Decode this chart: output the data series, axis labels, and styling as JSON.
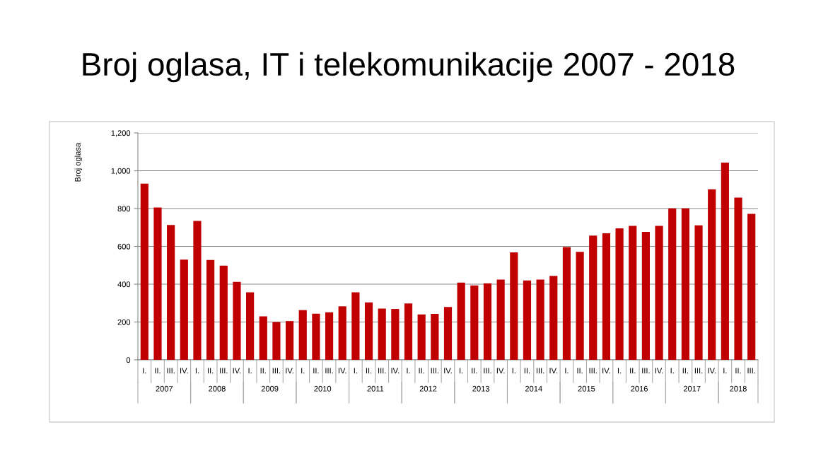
{
  "chart_data": {
    "type": "bar",
    "title": "Broj oglasa, IT i telekomunikacije 2007 - 2018",
    "ylabel": "Broj oglasa",
    "categories": [
      "I.",
      "II.",
      "III.",
      "IV.",
      "I.",
      "II.",
      "III.",
      "IV.",
      "I.",
      "II.",
      "III.",
      "IV.",
      "I.",
      "II.",
      "III.",
      "IV.",
      "I.",
      "II.",
      "III.",
      "IV.",
      "I.",
      "II.",
      "III.",
      "IV.",
      "I.",
      "II.",
      "III.",
      "IV.",
      "I.",
      "II.",
      "III.",
      "IV.",
      "I.",
      "II.",
      "III.",
      "IV.",
      "I.",
      "II.",
      "III.",
      "IV.",
      "I.",
      "II.",
      "III.",
      "IV.",
      "I.",
      "II.",
      "III."
    ],
    "annotations": [
      "2007",
      "2008",
      "2009",
      "2010",
      "2011",
      "2012",
      "2013",
      "2014",
      "2015",
      "2016",
      "2017",
      "2018"
    ],
    "values": [
      932,
      806,
      713,
      530,
      735,
      528,
      498,
      412,
      357,
      230,
      200,
      205,
      263,
      244,
      251,
      283,
      357,
      304,
      271,
      269,
      298,
      240,
      243,
      279,
      408,
      393,
      405,
      424,
      568,
      420,
      424,
      444,
      596,
      571,
      657,
      669,
      695,
      708,
      677,
      708,
      801,
      801,
      711,
      902,
      1043,
      858,
      772
    ],
    "color": "#c00000",
    "ylim": [
      0,
      1200
    ],
    "yticks": [
      0,
      200,
      400,
      600,
      800,
      {
        "value": 1000,
        "label": "1,000"
      },
      {
        "value": 1200,
        "label": "1,200"
      }
    ],
    "grid": "y",
    "legend": false
  }
}
